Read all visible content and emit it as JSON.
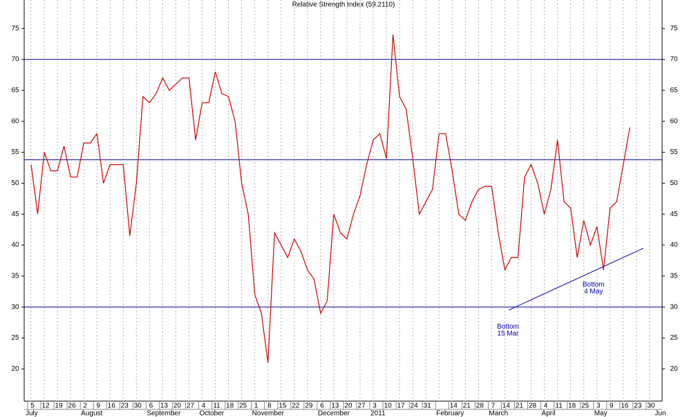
{
  "chart_data": {
    "type": "line",
    "title": "Relative Strength Index (59.2110)",
    "categories": [
      "5",
      null,
      "12",
      null,
      "19",
      null,
      "26",
      null,
      "2",
      null,
      "9",
      null,
      "16",
      null,
      "23",
      null,
      "30",
      null,
      "6",
      null,
      "13",
      null,
      "20",
      null,
      "27",
      null,
      "4",
      null,
      "11",
      null,
      "18",
      null,
      "25",
      null,
      "1",
      null,
      "8",
      null,
      "15",
      null,
      "22",
      null,
      "29",
      null,
      "6",
      null,
      "13",
      null,
      "20",
      null,
      "27",
      null,
      "3",
      null,
      "10",
      null,
      "17",
      null,
      "24",
      null,
      "31",
      null,
      null,
      null,
      "14",
      null,
      "21",
      null,
      "28",
      null,
      "7",
      null,
      "14",
      null,
      "21",
      null,
      "28",
      null,
      "4",
      null,
      "11",
      null,
      "18",
      null,
      "25",
      null,
      "3",
      null,
      "9",
      null,
      "16",
      null,
      "23",
      null,
      "30",
      null
    ],
    "months": [
      "July",
      "August",
      "September",
      "October",
      "November",
      "December",
      "2011",
      "February",
      "March",
      "April",
      "May",
      "Jun"
    ],
    "series": [
      {
        "color": "#cc0000",
        "values": [
          53,
          45,
          55,
          52,
          52,
          56,
          51,
          51,
          56.5,
          56.5,
          58,
          50,
          53,
          53,
          53,
          41.5,
          50,
          64,
          63,
          64.5,
          67,
          65,
          66,
          67,
          67,
          57,
          63,
          63,
          68,
          64.5,
          64,
          60,
          50,
          45,
          32,
          29,
          21,
          42,
          40,
          38,
          41,
          39,
          36,
          34.5,
          29,
          31,
          45,
          42,
          41,
          45,
          48,
          53,
          57,
          58,
          54,
          74,
          64,
          62,
          54,
          45,
          47,
          49,
          58,
          58,
          52,
          45,
          44,
          47,
          49,
          49.5,
          49.5,
          42,
          36,
          38,
          38,
          51,
          53,
          50,
          45,
          49,
          57,
          47,
          46,
          38,
          44,
          40,
          43,
          36,
          46,
          47,
          53,
          59,
          null,
          null,
          null,
          null
        ]
      }
    ],
    "ylim": [
      14.8,
      79.6
    ],
    "yticks": [
      20,
      25,
      30,
      35,
      40,
      45,
      50,
      55,
      60,
      65,
      70,
      75
    ],
    "hlines": [
      70,
      53.8,
      30
    ],
    "hline_color": "#0000aa",
    "trendline": {
      "from": 73,
      "to": 94,
      "values": [
        29.5,
        39.5
      ]
    },
    "annotations": [
      {
        "lines": [
          "Bottom",
          "15 Mar"
        ],
        "x": 73,
        "y": 26.8
      },
      {
        "lines": [
          "Bottom",
          "4 May"
        ],
        "x": 86,
        "y": 33.6
      }
    ],
    "grid": true
  }
}
